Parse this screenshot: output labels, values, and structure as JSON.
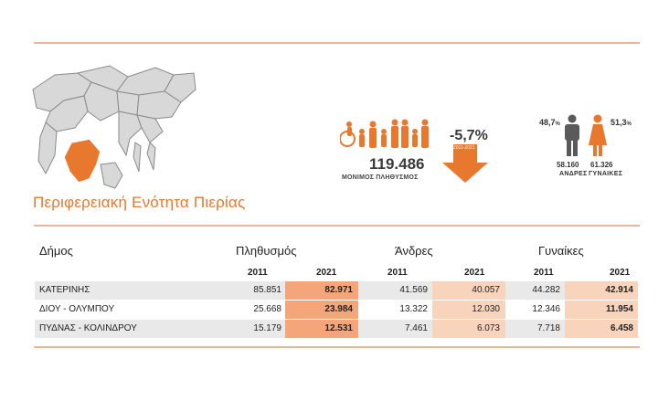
{
  "region_title": "Περιφερειακή Ενότητα Πιερίας",
  "population": {
    "total": "119.486",
    "label": "ΜΟΝΙΜΟΣ ΠΛΗΘΥΣΜΟΣ",
    "change": "-5,7%",
    "change_years": "2011-2021"
  },
  "gender": {
    "male_pct": "48,7",
    "female_pct": "51,3",
    "pct_sign": "%",
    "male_count": "58.160",
    "female_count": "61.326",
    "male_label": "ΑΝΔΡΕΣ",
    "female_label": "ΓΥΝΑΙΚΕΣ"
  },
  "table": {
    "col_municipality": "Δήμος",
    "col_population": "Πληθυσμός",
    "col_men": "Άνδρες",
    "col_women": "Γυναίκες",
    "year_2011": "2011",
    "year_2021": "2021",
    "rows": [
      {
        "name": "ΚΑΤΕΡΙΝΗΣ",
        "pop2011": "85.851",
        "pop2021": "82.971",
        "men2011": "41.569",
        "men2021": "40.057",
        "women2011": "44.282",
        "women2021": "42.914"
      },
      {
        "name": "ΔΙΟΥ - ΟΛΥΜΠΟΥ",
        "pop2011": "25.668",
        "pop2021": "23.984",
        "men2011": "13.322",
        "men2021": "12.030",
        "women2011": "12.346",
        "women2021": "11.954"
      },
      {
        "name": "ΠΥΔΝΑΣ - ΚΟΛΙΝΔΡΟΥ",
        "pop2011": "15.179",
        "pop2021": "12.531",
        "men2011": "7.461",
        "men2021": "6.073",
        "women2011": "7.718",
        "women2021": "6.458"
      }
    ]
  },
  "colors": {
    "accent": "#e8782d",
    "rule": "#f2b48e",
    "highlight_strong": "#f4a67a",
    "highlight_soft": "#f9d4bd",
    "row_gray": "#e9e9e9"
  }
}
